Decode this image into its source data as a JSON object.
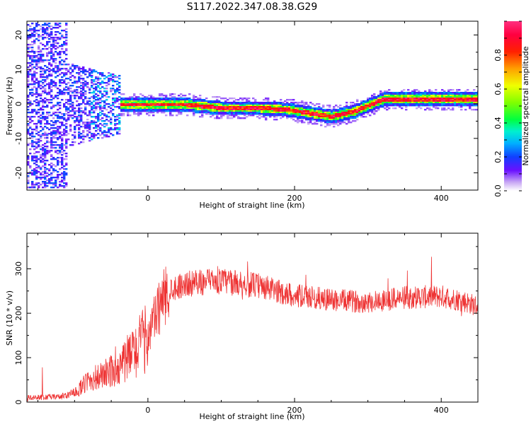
{
  "figure": {
    "title": "S117.2022.347.08.38.G29"
  },
  "chart_data": [
    {
      "type": "heatmap",
      "xlabel": "Height of straight line (km)",
      "ylabel": "Frequency (Hz)",
      "xlim": [
        -165,
        450
      ],
      "ylim": [
        -25,
        24
      ],
      "x_ticks": [
        0,
        200,
        400
      ],
      "y_ticks": [
        -20,
        -10,
        0,
        10,
        20
      ],
      "colorbar": {
        "label": "Normalized spectral amplitude",
        "range": [
          0,
          1
        ],
        "ticks": [
          0.0,
          0.2,
          0.4,
          0.6,
          0.8
        ],
        "colormap": [
          "#ffffff",
          "#b07cf0",
          "#5a00ff",
          "#0050ff",
          "#00c8ff",
          "#00ff40",
          "#c8ff00",
          "#ffe000",
          "#ff6000",
          "#ff0000",
          "#ff2a7f"
        ]
      },
      "ridge": {
        "description_points_x": [
          -40,
          0,
          50,
          100,
          150,
          190,
          220,
          250,
          280,
          320,
          360,
          400,
          450
        ],
        "description_points_y": [
          0.0,
          0.0,
          0.0,
          -1.0,
          -1.0,
          -1.5,
          -2.5,
          -3.5,
          -2.0,
          1.5,
          1.5,
          1.5,
          1.5
        ]
      },
      "noise_region": {
        "x_range": [
          -165,
          -40
        ],
        "y_spread": 24
      }
    },
    {
      "type": "line",
      "xlabel": "Height of straight line (km)",
      "ylabel": "SNR (10 * v/v)",
      "xlim": [
        -165,
        450
      ],
      "ylim": [
        0,
        380
      ],
      "x_ticks": [
        0,
        200,
        400
      ],
      "y_ticks": [
        0,
        100,
        200,
        300
      ],
      "series": [
        {
          "color": "#ee3333",
          "envelope_x": [
            -165,
            -120,
            -100,
            -80,
            -60,
            -40,
            -20,
            0,
            20,
            30,
            50,
            80,
            100,
            120,
            150,
            180,
            200,
            250,
            300,
            350,
            400,
            430,
            450
          ],
          "envelope_y": [
            10,
            12,
            20,
            50,
            60,
            80,
            110,
            150,
            230,
            255,
            265,
            270,
            272,
            268,
            262,
            248,
            240,
            230,
            225,
            235,
            238,
            228,
            215
          ]
        }
      ]
    }
  ]
}
